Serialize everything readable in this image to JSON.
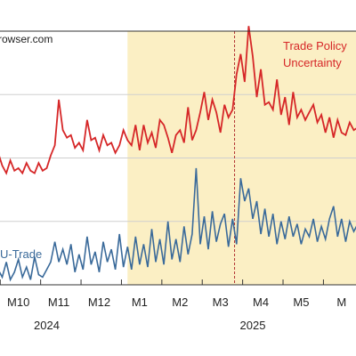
{
  "chart_data": {
    "type": "line",
    "source_text": "rowser.com",
    "x_ticks": [
      "M10",
      "M11",
      "M12",
      "M1",
      "M2",
      "M3",
      "M4",
      "M5",
      "M"
    ],
    "years": [
      "2024",
      "2025"
    ],
    "xlim": [
      9.0,
      17.9
    ],
    "ylim": [
      0,
      10
    ],
    "shaded_range": [
      12.2,
      17.9
    ],
    "vline_x": 14.85,
    "grid": true,
    "legend": "none",
    "colors": {
      "tpu": "#d62728",
      "eu": "#3a6a9a",
      "shade": "#fbefc4",
      "vline": "#b03030",
      "grid": "#cfcfcf"
    },
    "series": [
      {
        "name": "Trade Policy Uncertainty",
        "label_lines": [
          "Trade Policy",
          "Uncertainty"
        ],
        "color": "#d62728",
        "x": [
          9.0,
          9.1,
          9.2,
          9.3,
          9.4,
          9.5,
          9.6,
          9.7,
          9.8,
          9.9,
          10.0,
          10.1,
          10.2,
          10.3,
          10.4,
          10.5,
          10.6,
          10.7,
          10.8,
          10.9,
          11.0,
          11.1,
          11.2,
          11.3,
          11.4,
          11.5,
          11.6,
          11.7,
          11.8,
          11.9,
          12.0,
          12.1,
          12.2,
          12.3,
          12.4,
          12.5,
          12.6,
          12.7,
          12.8,
          12.9,
          13.0,
          13.1,
          13.2,
          13.3,
          13.4,
          13.5,
          13.6,
          13.7,
          13.8,
          13.9,
          14.0,
          14.1,
          14.2,
          14.3,
          14.4,
          14.5,
          14.6,
          14.7,
          14.8,
          14.9,
          15.0,
          15.1,
          15.2,
          15.3,
          15.4,
          15.5,
          15.6,
          15.7,
          15.8,
          15.9,
          16.0,
          16.1,
          16.2,
          16.3,
          16.4,
          16.5,
          16.6,
          16.7,
          16.8,
          16.9,
          17.0,
          17.1,
          17.2,
          17.3,
          17.4,
          17.5,
          17.6,
          17.7,
          17.8,
          17.9
        ],
        "y": [
          5.2,
          4.7,
          4.4,
          4.9,
          4.5,
          4.6,
          4.4,
          4.8,
          4.5,
          4.4,
          4.8,
          4.5,
          4.6,
          5.1,
          5.5,
          7.3,
          6.1,
          5.8,
          5.9,
          5.4,
          5.6,
          5.3,
          6.5,
          5.7,
          5.8,
          5.3,
          5.9,
          5.5,
          5.6,
          5.2,
          5.5,
          6.1,
          5.7,
          5.5,
          6.3,
          5.3,
          6.3,
          5.6,
          6.0,
          5.4,
          6.5,
          6.3,
          5.8,
          5.2,
          5.9,
          6.1,
          5.6,
          7.0,
          5.7,
          6.1,
          6.8,
          7.6,
          6.5,
          7.3,
          6.8,
          6.0,
          7.1,
          6.6,
          6.9,
          8.3,
          9.1,
          8.0,
          10.2,
          9.0,
          7.4,
          8.5,
          7.1,
          7.2,
          6.9,
          8.1,
          6.7,
          7.4,
          6.3,
          7.6,
          6.6,
          6.9,
          6.5,
          6.8,
          7.1,
          6.4,
          6.7,
          6.0,
          6.6,
          5.8,
          6.5,
          6.0,
          5.9,
          6.4,
          6.1,
          6.2
        ]
      },
      {
        "name": "EU-Trade",
        "label": "U-Trade",
        "color": "#3a6a9a",
        "x": [
          9.0,
          9.1,
          9.2,
          9.3,
          9.4,
          9.5,
          9.6,
          9.7,
          9.8,
          9.9,
          10.0,
          10.1,
          10.2,
          10.3,
          10.4,
          10.5,
          10.6,
          10.7,
          10.8,
          10.9,
          11.0,
          11.1,
          11.2,
          11.3,
          11.4,
          11.5,
          11.6,
          11.7,
          11.8,
          11.9,
          12.0,
          12.1,
          12.2,
          12.3,
          12.4,
          12.5,
          12.6,
          12.7,
          12.8,
          12.9,
          13.0,
          13.1,
          13.2,
          13.3,
          13.4,
          13.5,
          13.6,
          13.7,
          13.8,
          13.9,
          14.0,
          14.1,
          14.2,
          14.3,
          14.4,
          14.5,
          14.6,
          14.7,
          14.8,
          14.9,
          15.0,
          15.1,
          15.2,
          15.3,
          15.4,
          15.5,
          15.6,
          15.7,
          15.8,
          15.9,
          16.0,
          16.1,
          16.2,
          16.3,
          16.4,
          16.5,
          16.6,
          16.7,
          16.8,
          16.9,
          17.0,
          17.1,
          17.2,
          17.3,
          17.4,
          17.5,
          17.6,
          17.7,
          17.8,
          17.9
        ],
        "y": [
          0.6,
          0.3,
          0.9,
          0.2,
          0.5,
          1.0,
          0.3,
          0.7,
          0.2,
          1.1,
          0.4,
          0.3,
          0.6,
          0.9,
          1.7,
          0.9,
          1.4,
          0.8,
          1.6,
          0.5,
          1.2,
          0.6,
          1.9,
          0.8,
          1.3,
          0.5,
          1.7,
          0.9,
          1.4,
          0.6,
          2.0,
          0.7,
          1.5,
          0.6,
          1.9,
          0.8,
          1.6,
          0.7,
          2.2,
          0.9,
          1.8,
          0.8,
          2.5,
          1.0,
          1.8,
          0.9,
          2.3,
          1.2,
          2.0,
          4.6,
          1.6,
          2.7,
          1.4,
          2.9,
          1.7,
          2.4,
          2.8,
          1.5,
          2.6,
          1.6,
          4.2,
          3.3,
          3.8,
          2.6,
          3.3,
          2.0,
          3.0,
          1.9,
          2.8,
          1.6,
          2.5,
          1.8,
          2.7,
          1.9,
          2.4,
          1.6,
          2.2,
          1.9,
          2.6,
          1.7,
          2.3,
          1.8,
          2.6,
          3.1,
          1.9,
          2.6,
          1.7,
          2.5,
          2.1,
          2.4
        ]
      }
    ]
  }
}
